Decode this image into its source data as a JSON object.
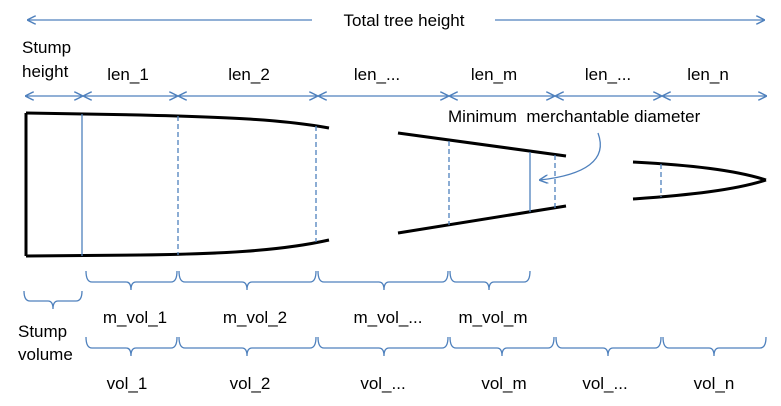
{
  "diagram": {
    "title": "Total tree height",
    "stump_height_label": [
      "Stump",
      "height"
    ],
    "stump_volume_label": [
      "Stump",
      "volume"
    ],
    "minimum_diameter_label": "Minimum  merchantable diameter",
    "segment_lengths": [
      "len_1",
      "len_2",
      "len_...",
      "len_m",
      "len_...",
      "len_n"
    ],
    "merchantable_volumes": [
      "m_vol_1",
      "m_vol_2",
      "m_vol_...",
      "m_vol_m"
    ],
    "volumes": [
      "vol_1",
      "vol_2",
      "vol_...",
      "vol_m",
      "vol_...",
      "vol_n"
    ],
    "colors": {
      "accent": "#4f81bd",
      "stem": "#000000",
      "text": "#000000"
    }
  }
}
